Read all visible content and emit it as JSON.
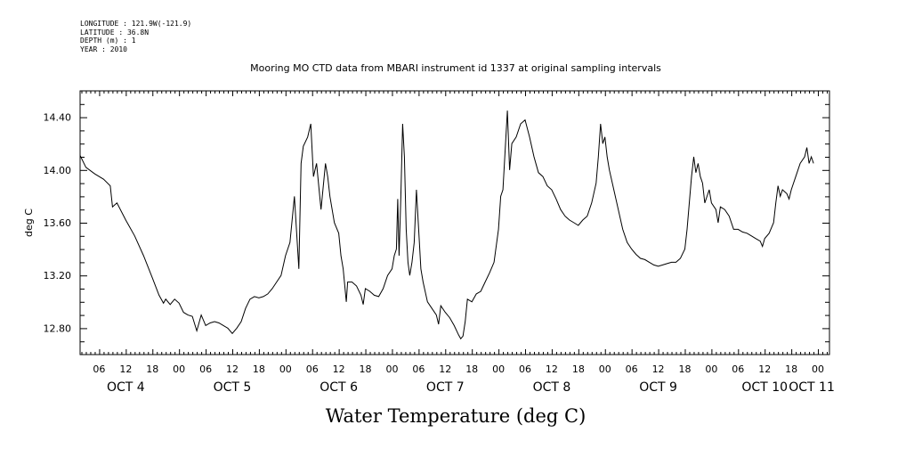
{
  "meta": {
    "longitude": "LONGITUDE : 121.9W(-121.9)",
    "latitude": "LATITUDE : 36.8N",
    "depth": "DEPTH (m) : 1",
    "year": "YEAR : 2010"
  },
  "chart_data": {
    "type": "line",
    "title": "Water Temperature (deg C)",
    "subtitle": "Mooring MO CTD data from MBARI instrument id 1337 at original sampling intervals",
    "ylabel": "deg C",
    "xlabel": "",
    "ylim": [
      12.6,
      14.6
    ],
    "yticks": [
      12.8,
      13.2,
      13.6,
      14.0,
      14.4
    ],
    "ytick_labels": [
      "12.80",
      "13.20",
      "13.60",
      "14.00",
      "14.40"
    ],
    "x_units": "hours since 2010-10-04 00:00",
    "xlim": [
      1.7,
      170.6
    ],
    "hour_tick_labels": [
      "06",
      "12",
      "18",
      "00",
      "06",
      "12",
      "18",
      "00",
      "06",
      "12",
      "18",
      "00",
      "06",
      "12",
      "18",
      "00",
      "06",
      "12",
      "18",
      "00",
      "06",
      "12",
      "18",
      "00",
      "06",
      "12",
      "18",
      "00"
    ],
    "day_labels": [
      "OCT  4",
      "OCT  5",
      "OCT  6",
      "OCT  7",
      "OCT  8",
      "OCT  9",
      "OCT 10",
      "OCT 11"
    ],
    "grid": false,
    "series": [
      {
        "color": "#000000",
        "points": [
          [
            1.7,
            14.11
          ],
          [
            3,
            14.02
          ],
          [
            5,
            13.97
          ],
          [
            7,
            13.93
          ],
          [
            8.5,
            13.88
          ],
          [
            9,
            13.72
          ],
          [
            10,
            13.75
          ],
          [
            12,
            13.62
          ],
          [
            14,
            13.5
          ],
          [
            16,
            13.35
          ],
          [
            18,
            13.18
          ],
          [
            19.5,
            13.05
          ],
          [
            20.5,
            12.99
          ],
          [
            21,
            13.02
          ],
          [
            22,
            12.98
          ],
          [
            23,
            13.02
          ],
          [
            24,
            12.99
          ],
          [
            25,
            12.92
          ],
          [
            26,
            12.9
          ],
          [
            27,
            12.89
          ],
          [
            28,
            12.78
          ],
          [
            29,
            12.9
          ],
          [
            30,
            12.82
          ],
          [
            31,
            12.84
          ],
          [
            32,
            12.85
          ],
          [
            33,
            12.84
          ],
          [
            34,
            12.82
          ],
          [
            35,
            12.8
          ],
          [
            36,
            12.76
          ],
          [
            37,
            12.8
          ],
          [
            38,
            12.85
          ],
          [
            39,
            12.95
          ],
          [
            40,
            13.02
          ],
          [
            41,
            13.04
          ],
          [
            42,
            13.03
          ],
          [
            43,
            13.04
          ],
          [
            44,
            13.06
          ],
          [
            45,
            13.1
          ],
          [
            46,
            13.15
          ],
          [
            47,
            13.2
          ],
          [
            48,
            13.35
          ],
          [
            49,
            13.45
          ],
          [
            50,
            13.8
          ],
          [
            51,
            13.25
          ],
          [
            51.5,
            14.05
          ],
          [
            52,
            14.18
          ],
          [
            53,
            14.25
          ],
          [
            53.7,
            14.35
          ],
          [
            54.3,
            13.95
          ],
          [
            55,
            14.05
          ],
          [
            56,
            13.7
          ],
          [
            57,
            14.05
          ],
          [
            57.5,
            13.95
          ],
          [
            58,
            13.8
          ],
          [
            58.5,
            13.7
          ],
          [
            59,
            13.6
          ],
          [
            60,
            13.52
          ],
          [
            60.5,
            13.35
          ],
          [
            61,
            13.25
          ],
          [
            61.7,
            13.0
          ],
          [
            62,
            13.15
          ],
          [
            63,
            13.15
          ],
          [
            64,
            13.12
          ],
          [
            65,
            13.05
          ],
          [
            65.5,
            12.98
          ],
          [
            66,
            13.1
          ],
          [
            67,
            13.08
          ],
          [
            68,
            13.05
          ],
          [
            69,
            13.04
          ],
          [
            70,
            13.1
          ],
          [
            71,
            13.2
          ],
          [
            72,
            13.25
          ],
          [
            72.5,
            13.35
          ],
          [
            73,
            13.4
          ],
          [
            73.3,
            13.78
          ],
          [
            73.6,
            13.35
          ],
          [
            74,
            13.8
          ],
          [
            74.4,
            14.35
          ],
          [
            74.8,
            14.1
          ],
          [
            75.2,
            13.55
          ],
          [
            75.6,
            13.3
          ],
          [
            76,
            13.2
          ],
          [
            76.5,
            13.3
          ],
          [
            77,
            13.45
          ],
          [
            77.5,
            13.85
          ],
          [
            78,
            13.55
          ],
          [
            78.5,
            13.25
          ],
          [
            79,
            13.15
          ],
          [
            80,
            13.0
          ],
          [
            81,
            12.95
          ],
          [
            82,
            12.9
          ],
          [
            82.5,
            12.83
          ],
          [
            83,
            12.97
          ],
          [
            84,
            12.92
          ],
          [
            85,
            12.88
          ],
          [
            86,
            12.82
          ],
          [
            87,
            12.75
          ],
          [
            87.5,
            12.72
          ],
          [
            88,
            12.74
          ],
          [
            88.5,
            12.85
          ],
          [
            89,
            13.02
          ],
          [
            90,
            13.0
          ],
          [
            91,
            13.06
          ],
          [
            92,
            13.08
          ],
          [
            93,
            13.15
          ],
          [
            94,
            13.22
          ],
          [
            95,
            13.3
          ],
          [
            96,
            13.55
          ],
          [
            96.5,
            13.8
          ],
          [
            97,
            13.85
          ],
          [
            97.5,
            14.15
          ],
          [
            98,
            14.45
          ],
          [
            98.5,
            14.0
          ],
          [
            99,
            14.2
          ],
          [
            100,
            14.25
          ],
          [
            101,
            14.35
          ],
          [
            102,
            14.38
          ],
          [
            103,
            14.25
          ],
          [
            104,
            14.1
          ],
          [
            105,
            13.98
          ],
          [
            106,
            13.95
          ],
          [
            107,
            13.88
          ],
          [
            108,
            13.85
          ],
          [
            109,
            13.78
          ],
          [
            110,
            13.7
          ],
          [
            111,
            13.65
          ],
          [
            112,
            13.62
          ],
          [
            113,
            13.6
          ],
          [
            114,
            13.58
          ],
          [
            115,
            13.62
          ],
          [
            116,
            13.65
          ],
          [
            117,
            13.75
          ],
          [
            118,
            13.9
          ],
          [
            118.5,
            14.1
          ],
          [
            119,
            14.35
          ],
          [
            119.5,
            14.2
          ],
          [
            120,
            14.25
          ],
          [
            120.5,
            14.1
          ],
          [
            121,
            14.0
          ],
          [
            122,
            13.85
          ],
          [
            123,
            13.7
          ],
          [
            124,
            13.55
          ],
          [
            125,
            13.45
          ],
          [
            126,
            13.4
          ],
          [
            127,
            13.36
          ],
          [
            128,
            13.33
          ],
          [
            129,
            13.32
          ],
          [
            130,
            13.3
          ],
          [
            131,
            13.28
          ],
          [
            132,
            13.27
          ],
          [
            133,
            13.28
          ],
          [
            134,
            13.29
          ],
          [
            135,
            13.3
          ],
          [
            136,
            13.3
          ],
          [
            137,
            13.33
          ],
          [
            138,
            13.4
          ],
          [
            138.5,
            13.55
          ],
          [
            139,
            13.75
          ],
          [
            139.5,
            13.95
          ],
          [
            140,
            14.1
          ],
          [
            140.5,
            13.98
          ],
          [
            141,
            14.05
          ],
          [
            141.5,
            13.95
          ],
          [
            142,
            13.9
          ],
          [
            142.5,
            13.75
          ],
          [
            143,
            13.8
          ],
          [
            143.5,
            13.85
          ],
          [
            144,
            13.75
          ],
          [
            145,
            13.7
          ],
          [
            145.5,
            13.6
          ],
          [
            146,
            13.72
          ],
          [
            147,
            13.7
          ],
          [
            148,
            13.65
          ],
          [
            149,
            13.55
          ],
          [
            150,
            13.55
          ],
          [
            151,
            13.53
          ],
          [
            152,
            13.52
          ],
          [
            153,
            13.5
          ],
          [
            154,
            13.48
          ],
          [
            155,
            13.46
          ],
          [
            155.5,
            13.42
          ],
          [
            156,
            13.48
          ],
          [
            157,
            13.52
          ],
          [
            158,
            13.6
          ],
          [
            158.5,
            13.75
          ],
          [
            159,
            13.88
          ],
          [
            159.5,
            13.8
          ],
          [
            160,
            13.85
          ],
          [
            161,
            13.82
          ],
          [
            161.5,
            13.78
          ],
          [
            162,
            13.85
          ],
          [
            163,
            13.95
          ],
          [
            164,
            14.05
          ],
          [
            165,
            14.1
          ],
          [
            165.5,
            14.17
          ],
          [
            166,
            14.05
          ],
          [
            166.5,
            14.1
          ],
          [
            167,
            14.05
          ]
        ]
      }
    ]
  }
}
